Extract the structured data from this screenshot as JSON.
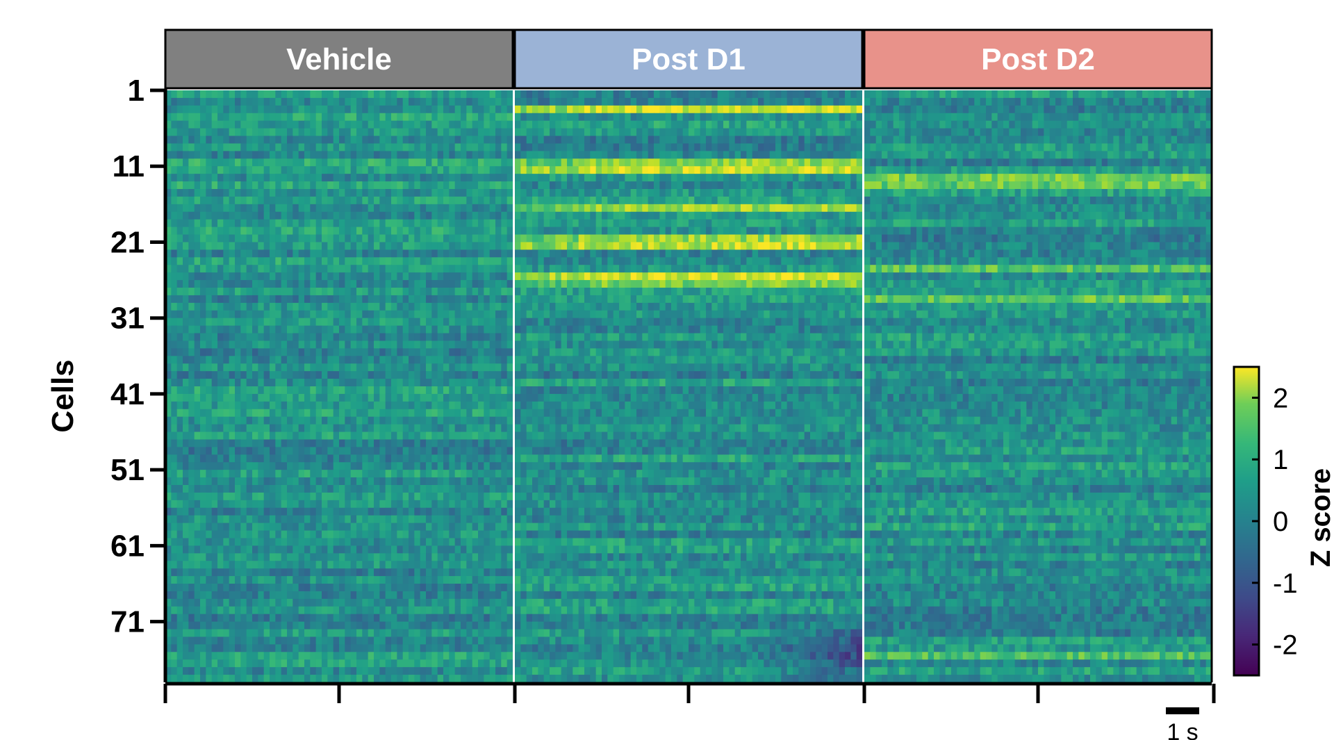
{
  "chart_data": {
    "type": "heatmap",
    "ylabel": "Cells",
    "panels": [
      {
        "name": "Vehicle",
        "color": "#808080"
      },
      {
        "name": "Post D1",
        "color": "#9bb3d6"
      },
      {
        "name": "Post D2",
        "color": "#e8928a"
      }
    ],
    "n_cells": 78,
    "n_timebins": 60,
    "y_ticks": [
      "1",
      "11",
      "21",
      "31",
      "41",
      "51",
      "61",
      "71"
    ],
    "colorbar": {
      "title": "Z score",
      "range": [
        -2.5,
        2.5
      ],
      "ticks": [
        "2",
        "1",
        "0",
        "-1",
        "-2"
      ],
      "colormap": "viridis"
    },
    "scale_bar": {
      "label": "1 s"
    },
    "row_profiles": [
      {
        "panel": "Vehicle",
        "mean_z": 0.3,
        "note_rows": "1-20 slightly elevated"
      },
      {
        "panel": "Post D1",
        "rows_high": [
          3,
          10,
          11,
          16,
          20,
          21,
          25,
          26
        ]
      },
      {
        "panel": "Post D2",
        "rows_high": [
          12,
          13,
          24,
          28,
          75
        ]
      }
    ]
  }
}
